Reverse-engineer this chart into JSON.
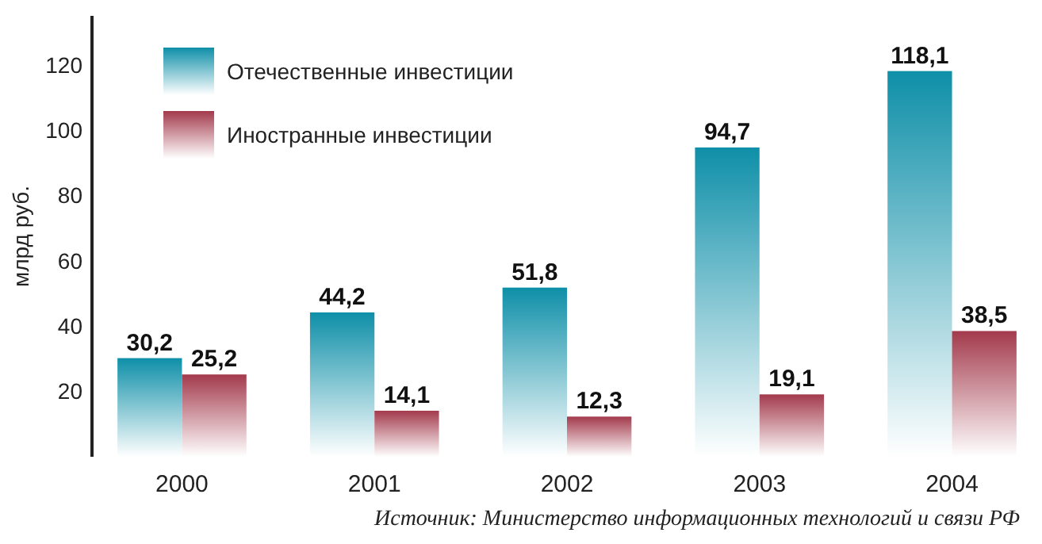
{
  "chart_data": {
    "type": "bar",
    "ylabel": "млрд руб.",
    "categories": [
      "2000",
      "2001",
      "2002",
      "2003",
      "2004"
    ],
    "series": [
      {
        "name": "Отечественные инвестиции",
        "color": "#0e8fa8",
        "values": [
          30.2,
          44.2,
          51.8,
          94.7,
          118.1
        ],
        "value_labels": [
          "30,2",
          "44,2",
          "51,8",
          "94,7",
          "118,1"
        ]
      },
      {
        "name": "Иностранные инвестиции",
        "color": "#a33a4c",
        "values": [
          25.2,
          14.1,
          12.3,
          19.1,
          38.5
        ],
        "value_labels": [
          "25,2",
          "14,1",
          "12,3",
          "19,1",
          "38,5"
        ]
      }
    ],
    "ylim": [
      0,
      135
    ],
    "yticks": [
      20,
      40,
      60,
      80,
      100,
      120
    ],
    "legend": "top left",
    "grid": false,
    "annotations": [
      "Источник:  Министерство информационных технологий и связи РФ"
    ]
  }
}
